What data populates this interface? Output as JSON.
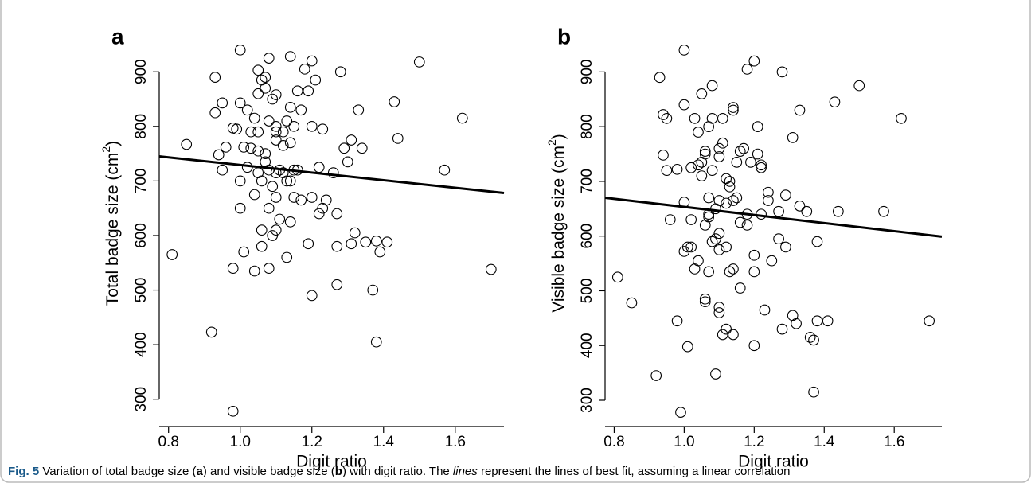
{
  "caption": [
    "Fig. 5",
    " Variation of total badge size (",
    "a",
    ") and visible badge size (",
    "b",
    ") with digit ratio. The ",
    "lines",
    " represent the lines of best fit, assuming a linear correlation"
  ],
  "chart_data": [
    {
      "type": "scatter",
      "panel": "a",
      "xlabel": "Digit ratio",
      "ylabel": [
        "Total badge size (cm",
        "2",
        ")"
      ],
      "xlim": [
        0.774,
        1.736
      ],
      "ylim": [
        250,
        966
      ],
      "xticks": [
        0.8,
        {
          "value": 1,
          "label": "1.0"
        },
        1.2,
        1.4,
        1.6
      ],
      "yticks": [
        300,
        400,
        500,
        600,
        700,
        800,
        900
      ],
      "color": "#000000",
      "x": [
        0.81,
        0.85,
        0.92,
        0.93,
        0.93,
        0.94,
        0.95,
        0.95,
        0.96,
        0.98,
        0.98,
        0.99,
        1.0,
        1.0,
        1.0,
        1.0,
        1.01,
        1.01,
        1.02,
        1.02,
        1.03,
        1.03,
        1.04,
        1.04,
        1.04,
        1.05,
        1.05,
        1.05,
        1.05,
        1.05,
        1.06,
        1.06,
        1.06,
        1.06,
        1.07,
        1.07,
        1.07,
        1.07,
        1.08,
        1.08,
        1.08,
        1.08,
        1.08,
        1.09,
        1.09,
        1.09,
        1.1,
        1.1,
        1.1,
        1.1,
        1.1,
        1.1,
        1.1,
        1.11,
        1.11,
        1.12,
        1.12,
        1.12,
        1.13,
        1.13,
        1.13,
        1.14,
        1.14,
        1.14,
        1.14,
        1.14,
        1.15,
        1.15,
        1.15,
        1.16,
        1.16,
        1.17,
        1.17,
        1.18,
        1.19,
        1.19,
        1.2,
        1.2,
        1.2,
        1.2,
        1.21,
        1.22,
        1.22,
        1.23,
        1.23,
        1.24,
        1.26,
        1.27,
        1.27,
        1.27,
        1.28,
        1.29,
        1.3,
        1.31,
        1.31,
        1.32,
        1.33,
        1.34,
        1.35,
        1.37,
        1.38,
        1.38,
        1.39,
        1.41,
        1.43,
        1.44,
        1.5,
        1.57,
        1.62,
        1.7,
        0.98
      ],
      "values": [
        565,
        767,
        423,
        890,
        825,
        748,
        720,
        843,
        762,
        540,
        797,
        795,
        940,
        843,
        700,
        650,
        570,
        762,
        725,
        830,
        790,
        760,
        815,
        675,
        535,
        903,
        860,
        790,
        755,
        715,
        610,
        580,
        700,
        885,
        890,
        870,
        750,
        735,
        925,
        810,
        720,
        650,
        540,
        850,
        690,
        600,
        858,
        800,
        790,
        775,
        715,
        670,
        610,
        720,
        630,
        790,
        765,
        715,
        810,
        700,
        560,
        928,
        835,
        770,
        700,
        625,
        800,
        720,
        670,
        865,
        720,
        830,
        665,
        905,
        865,
        585,
        920,
        490,
        800,
        670,
        885,
        725,
        640,
        795,
        650,
        665,
        715,
        640,
        580,
        510,
        900,
        760,
        735,
        775,
        585,
        605,
        830,
        760,
        588,
        500,
        405,
        590,
        570,
        588,
        845,
        778,
        918,
        720,
        815,
        538,
        278
      ],
      "fit_line": {
        "x": [
          0.774,
          1.736
        ],
        "values": [
          745,
          678
        ]
      }
    },
    {
      "type": "scatter",
      "panel": "b",
      "xlabel": "Digit ratio",
      "ylabel": [
        "Visible badge size (cm",
        "2",
        ")"
      ],
      "xlim": [
        0.774,
        1.736
      ],
      "ylim": [
        252,
        966
      ],
      "xticks": [
        0.8,
        {
          "value": 1,
          "label": "1.0"
        },
        1.2,
        1.4,
        1.6
      ],
      "yticks": [
        300,
        400,
        500,
        600,
        700,
        800,
        900
      ],
      "color": "#000000",
      "x": [
        0.81,
        0.85,
        0.92,
        0.93,
        0.94,
        0.94,
        0.95,
        0.95,
        0.96,
        0.98,
        0.98,
        0.99,
        1.0,
        1.0,
        1.0,
        1.0,
        1.01,
        1.01,
        1.02,
        1.02,
        1.02,
        1.03,
        1.03,
        1.04,
        1.04,
        1.04,
        1.05,
        1.05,
        1.05,
        1.06,
        1.06,
        1.06,
        1.06,
        1.06,
        1.07,
        1.07,
        1.07,
        1.07,
        1.07,
        1.08,
        1.08,
        1.08,
        1.08,
        1.09,
        1.09,
        1.09,
        1.1,
        1.1,
        1.1,
        1.1,
        1.1,
        1.1,
        1.1,
        1.11,
        1.11,
        1.11,
        1.12,
        1.12,
        1.12,
        1.12,
        1.13,
        1.13,
        1.13,
        1.14,
        1.14,
        1.14,
        1.14,
        1.14,
        1.15,
        1.15,
        1.16,
        1.16,
        1.16,
        1.17,
        1.18,
        1.18,
        1.18,
        1.19,
        1.2,
        1.2,
        1.2,
        1.2,
        1.21,
        1.21,
        1.22,
        1.22,
        1.22,
        1.23,
        1.24,
        1.24,
        1.25,
        1.27,
        1.27,
        1.28,
        1.28,
        1.29,
        1.29,
        1.31,
        1.31,
        1.32,
        1.33,
        1.33,
        1.35,
        1.36,
        1.37,
        1.37,
        1.38,
        1.38,
        1.41,
        1.43,
        1.44,
        1.5,
        1.57,
        1.62,
        1.7
      ],
      "values": [
        525,
        478,
        345,
        890,
        822,
        748,
        815,
        720,
        630,
        722,
        445,
        278,
        940,
        840,
        662,
        572,
        398,
        580,
        725,
        630,
        580,
        815,
        540,
        790,
        730,
        555,
        860,
        735,
        710,
        755,
        750,
        620,
        480,
        485,
        800,
        670,
        640,
        635,
        535,
        875,
        815,
        720,
        590,
        348,
        650,
        595,
        760,
        745,
        665,
        605,
        575,
        470,
        460,
        815,
        770,
        420,
        705,
        660,
        580,
        430,
        700,
        690,
        535,
        835,
        830,
        665,
        540,
        420,
        735,
        670,
        755,
        625,
        505,
        760,
        905,
        640,
        620,
        735,
        920,
        565,
        400,
        535,
        800,
        750,
        730,
        725,
        640,
        465,
        680,
        665,
        555,
        595,
        645,
        900,
        430,
        675,
        580,
        455,
        780,
        440,
        655,
        830,
        645,
        415,
        410,
        315,
        590,
        445,
        445,
        845,
        645,
        875,
        645,
        815,
        445
      ],
      "fit_line": {
        "x": [
          0.774,
          1.736
        ],
        "values": [
          670,
          599
        ]
      }
    }
  ]
}
